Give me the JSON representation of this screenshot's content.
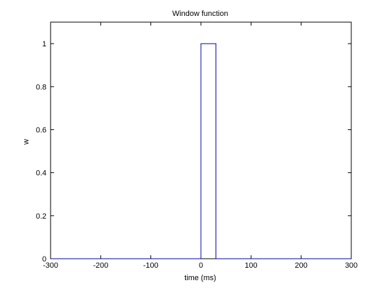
{
  "chart_data": {
    "type": "line",
    "title": "Window function",
    "xlabel": "time (ms)",
    "ylabel": "w",
    "xlim": [
      -300,
      300
    ],
    "ylim": [
      0,
      1.1
    ],
    "xticks": [
      -300,
      -200,
      -100,
      0,
      100,
      200,
      300
    ],
    "xtick_labels": [
      "-300",
      "-200",
      "-100",
      "0",
      "100",
      "200",
      "300"
    ],
    "yticks": [
      0,
      0.2,
      0.4,
      0.6,
      0.8,
      1
    ],
    "ytick_labels": [
      "0",
      "0.2",
      "0.4",
      "0.6",
      "0.8",
      "1"
    ],
    "grid": false,
    "series": [
      {
        "color": "#0000aa",
        "x": [
          -300,
          0,
          0,
          0,
          0,
          30,
          30,
          300
        ],
        "y": [
          0,
          0,
          0.5,
          0.5,
          1,
          1,
          0,
          0
        ]
      }
    ]
  }
}
